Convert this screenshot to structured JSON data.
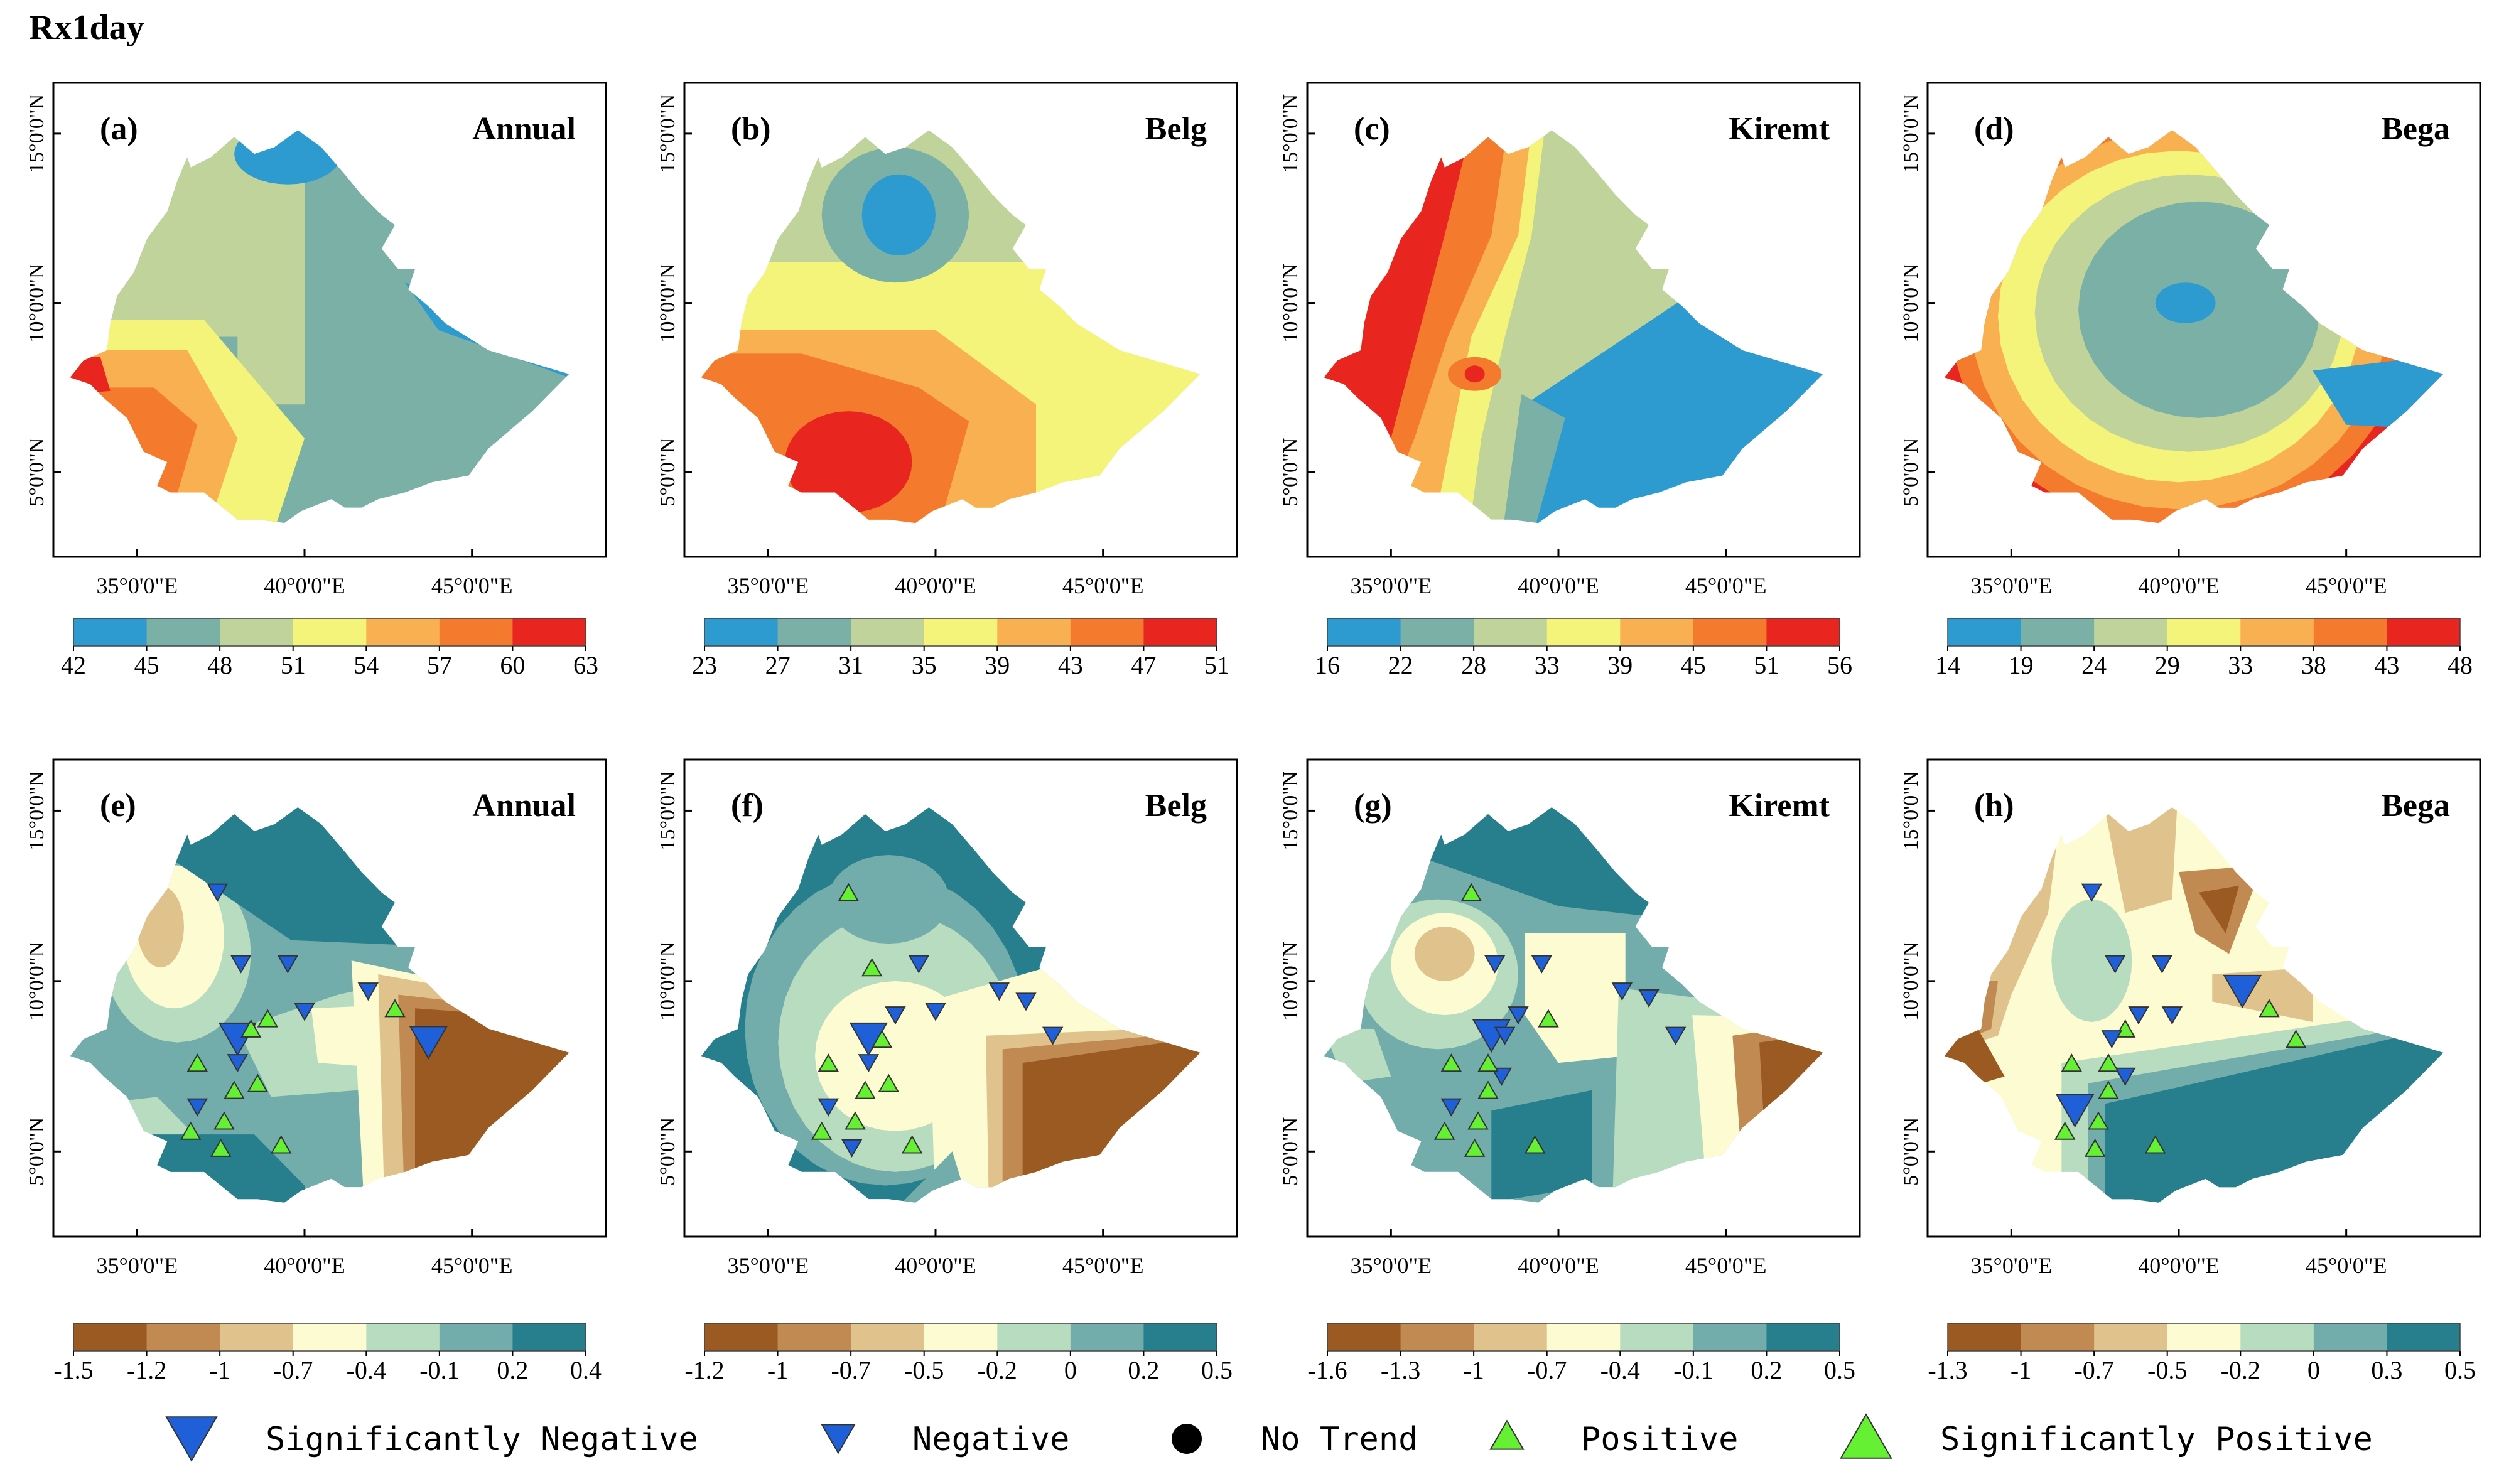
{
  "figure_title": "Rx1day",
  "axes": {
    "x_ticks": [
      "35°0'0\"E",
      "40°0'0\"E",
      "45°0'0\"E"
    ],
    "y_ticks": [
      "15°0'0\"N",
      "10°0'0\"N",
      "5°0'0\"N"
    ],
    "x_tick_values": [
      35,
      40,
      45
    ],
    "y_tick_values": [
      15,
      10,
      5
    ],
    "lon_range": [
      32.5,
      49
    ],
    "lat_range": [
      2.5,
      16.5
    ]
  },
  "palettes": {
    "mean": [
      "#2e9bd0",
      "#7ab0a6",
      "#bfd39a",
      "#f4f37a",
      "#f8b050",
      "#f47a2e",
      "#e8251f"
    ],
    "trend": [
      "#9a5a22",
      "#c08a52",
      "#dfc28c",
      "#fdfbd2",
      "#b8dcc0",
      "#72adab",
      "#277f8e"
    ]
  },
  "top_row": [
    {
      "label": "(a)",
      "season": "Annual",
      "ticks": [
        "42",
        "45",
        "48",
        "51",
        "54",
        "57",
        "60",
        "63"
      ],
      "pattern": "annual_mean"
    },
    {
      "label": "(b)",
      "season": "Belg",
      "ticks": [
        "23",
        "27",
        "31",
        "35",
        "39",
        "43",
        "47",
        "51"
      ],
      "pattern": "belg_mean"
    },
    {
      "label": "(c)",
      "season": "Kiremt",
      "ticks": [
        "16",
        "22",
        "28",
        "33",
        "39",
        "45",
        "51",
        "56"
      ],
      "pattern": "kiremt_mean"
    },
    {
      "label": "(d)",
      "season": "Bega",
      "ticks": [
        "14",
        "19",
        "24",
        "29",
        "33",
        "38",
        "43",
        "48"
      ],
      "pattern": "bega_mean"
    }
  ],
  "bottom_row": [
    {
      "label": "(e)",
      "season": "Annual",
      "ticks": [
        "-1.5",
        "-1.2",
        "-1",
        "-0.7",
        "-0.4",
        "-0.1",
        "0.2",
        "0.4"
      ],
      "pattern": "annual_trend"
    },
    {
      "label": "(f)",
      "season": "Belg",
      "ticks": [
        "-1.2",
        "-1",
        "-0.7",
        "-0.5",
        "-0.2",
        "0",
        "0.2",
        "0.5"
      ],
      "pattern": "belg_trend"
    },
    {
      "label": "(g)",
      "season": "Kiremt",
      "ticks": [
        "-1.6",
        "-1.3",
        "-1",
        "-0.7",
        "-0.4",
        "-0.1",
        "0.2",
        "0.5"
      ],
      "pattern": "kiremt_trend"
    },
    {
      "label": "(h)",
      "season": "Bega",
      "ticks": [
        "-1.3",
        "-1",
        "-0.7",
        "-0.5",
        "-0.2",
        "0",
        "0.3",
        "0.5"
      ],
      "pattern": "bega_trend"
    }
  ],
  "stations": {
    "e": [
      {
        "lon": 37.4,
        "lat": 12.6,
        "type": "neg"
      },
      {
        "lon": 38.1,
        "lat": 10.5,
        "type": "neg"
      },
      {
        "lon": 39.5,
        "lat": 10.5,
        "type": "neg"
      },
      {
        "lon": 40.0,
        "lat": 9.1,
        "type": "neg"
      },
      {
        "lon": 41.9,
        "lat": 9.7,
        "type": "neg"
      },
      {
        "lon": 38.0,
        "lat": 8.3,
        "type": "sneg"
      },
      {
        "lon": 43.7,
        "lat": 8.2,
        "type": "sneg"
      },
      {
        "lon": 38.0,
        "lat": 7.6,
        "type": "neg"
      },
      {
        "lon": 36.8,
        "lat": 6.3,
        "type": "neg"
      },
      {
        "lon": 42.7,
        "lat": 9.2,
        "type": "pos"
      },
      {
        "lon": 38.9,
        "lat": 8.9,
        "type": "pos"
      },
      {
        "lon": 38.4,
        "lat": 8.6,
        "type": "pos"
      },
      {
        "lon": 36.8,
        "lat": 7.6,
        "type": "pos"
      },
      {
        "lon": 38.6,
        "lat": 7.0,
        "type": "pos"
      },
      {
        "lon": 37.9,
        "lat": 6.8,
        "type": "pos"
      },
      {
        "lon": 37.6,
        "lat": 5.9,
        "type": "pos"
      },
      {
        "lon": 36.6,
        "lat": 5.6,
        "type": "pos"
      },
      {
        "lon": 37.5,
        "lat": 5.1,
        "type": "pos"
      },
      {
        "lon": 39.3,
        "lat": 5.2,
        "type": "pos"
      }
    ],
    "f": [
      {
        "lon": 37.4,
        "lat": 12.6,
        "type": "pos"
      },
      {
        "lon": 38.1,
        "lat": 10.4,
        "type": "pos"
      },
      {
        "lon": 39.5,
        "lat": 10.5,
        "type": "neg"
      },
      {
        "lon": 40.0,
        "lat": 9.1,
        "type": "neg"
      },
      {
        "lon": 41.9,
        "lat": 9.7,
        "type": "neg"
      },
      {
        "lon": 42.7,
        "lat": 9.4,
        "type": "neg"
      },
      {
        "lon": 43.5,
        "lat": 8.4,
        "type": "neg"
      },
      {
        "lon": 38.0,
        "lat": 8.3,
        "type": "sneg"
      },
      {
        "lon": 38.8,
        "lat": 9.0,
        "type": "neg"
      },
      {
        "lon": 38.4,
        "lat": 8.3,
        "type": "pos"
      },
      {
        "lon": 38.0,
        "lat": 7.6,
        "type": "neg"
      },
      {
        "lon": 36.8,
        "lat": 7.6,
        "type": "pos"
      },
      {
        "lon": 38.6,
        "lat": 7.0,
        "type": "pos"
      },
      {
        "lon": 37.9,
        "lat": 6.8,
        "type": "pos"
      },
      {
        "lon": 36.8,
        "lat": 6.3,
        "type": "neg"
      },
      {
        "lon": 37.6,
        "lat": 5.9,
        "type": "pos"
      },
      {
        "lon": 36.6,
        "lat": 5.6,
        "type": "pos"
      },
      {
        "lon": 37.5,
        "lat": 5.1,
        "type": "neg"
      },
      {
        "lon": 39.3,
        "lat": 5.2,
        "type": "pos"
      }
    ],
    "g": [
      {
        "lon": 37.4,
        "lat": 12.6,
        "type": "pos"
      },
      {
        "lon": 38.1,
        "lat": 10.5,
        "type": "neg"
      },
      {
        "lon": 39.5,
        "lat": 10.5,
        "type": "neg"
      },
      {
        "lon": 41.9,
        "lat": 9.7,
        "type": "neg"
      },
      {
        "lon": 42.7,
        "lat": 9.5,
        "type": "neg"
      },
      {
        "lon": 43.5,
        "lat": 8.4,
        "type": "neg"
      },
      {
        "lon": 38.0,
        "lat": 8.4,
        "type": "sneg"
      },
      {
        "lon": 38.8,
        "lat": 9.0,
        "type": "neg"
      },
      {
        "lon": 39.7,
        "lat": 8.9,
        "type": "pos"
      },
      {
        "lon": 38.4,
        "lat": 8.4,
        "type": "neg"
      },
      {
        "lon": 38.3,
        "lat": 7.2,
        "type": "neg"
      },
      {
        "lon": 36.8,
        "lat": 7.6,
        "type": "pos"
      },
      {
        "lon": 37.9,
        "lat": 7.6,
        "type": "pos"
      },
      {
        "lon": 37.9,
        "lat": 6.8,
        "type": "pos"
      },
      {
        "lon": 36.8,
        "lat": 6.3,
        "type": "neg"
      },
      {
        "lon": 37.6,
        "lat": 5.9,
        "type": "pos"
      },
      {
        "lon": 36.6,
        "lat": 5.6,
        "type": "pos"
      },
      {
        "lon": 37.5,
        "lat": 5.1,
        "type": "pos"
      },
      {
        "lon": 39.3,
        "lat": 5.2,
        "type": "pos"
      }
    ],
    "h": [
      {
        "lon": 37.4,
        "lat": 12.6,
        "type": "neg"
      },
      {
        "lon": 38.1,
        "lat": 10.5,
        "type": "neg"
      },
      {
        "lon": 39.5,
        "lat": 10.5,
        "type": "neg"
      },
      {
        "lon": 41.9,
        "lat": 9.7,
        "type": "sneg"
      },
      {
        "lon": 42.7,
        "lat": 9.2,
        "type": "pos"
      },
      {
        "lon": 43.5,
        "lat": 8.3,
        "type": "pos"
      },
      {
        "lon": 39.8,
        "lat": 9.0,
        "type": "neg"
      },
      {
        "lon": 38.8,
        "lat": 9.0,
        "type": "neg"
      },
      {
        "lon": 38.4,
        "lat": 8.6,
        "type": "pos"
      },
      {
        "lon": 38.0,
        "lat": 8.3,
        "type": "neg"
      },
      {
        "lon": 38.4,
        "lat": 7.2,
        "type": "neg"
      },
      {
        "lon": 36.8,
        "lat": 7.6,
        "type": "pos"
      },
      {
        "lon": 37.9,
        "lat": 7.6,
        "type": "pos"
      },
      {
        "lon": 37.9,
        "lat": 6.8,
        "type": "pos"
      },
      {
        "lon": 36.9,
        "lat": 6.2,
        "type": "sneg"
      },
      {
        "lon": 37.6,
        "lat": 5.9,
        "type": "pos"
      },
      {
        "lon": 36.6,
        "lat": 5.6,
        "type": "pos"
      },
      {
        "lon": 37.5,
        "lat": 5.1,
        "type": "pos"
      },
      {
        "lon": 39.3,
        "lat": 5.2,
        "type": "pos"
      }
    ]
  },
  "legend": {
    "items": [
      {
        "key": "sneg",
        "label": "Significantly Negative"
      },
      {
        "key": "neg",
        "label": "Negative"
      },
      {
        "key": "none",
        "label": "No Trend"
      },
      {
        "key": "pos",
        "label": "Positive"
      },
      {
        "key": "spos",
        "label": "Significantly Positive"
      }
    ],
    "colors": {
      "negative": "#1f5fd8",
      "positive": "#66f033",
      "none": "#000000"
    }
  }
}
